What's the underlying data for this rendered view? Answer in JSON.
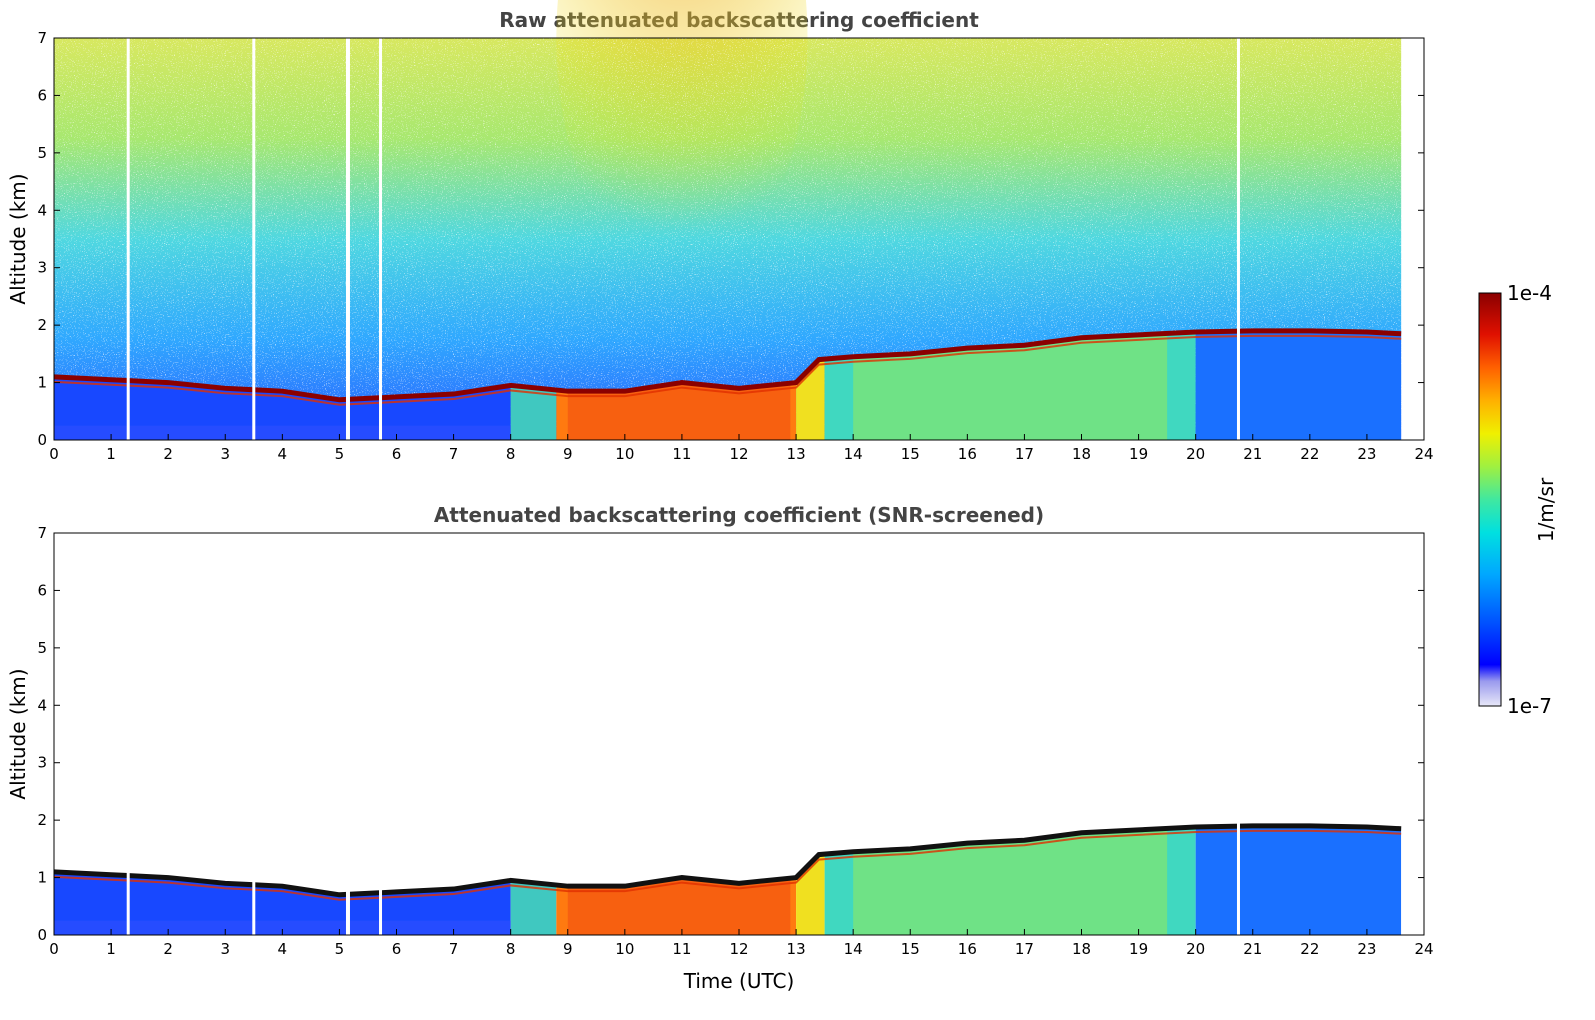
{
  "chart_data": [
    {
      "type": "heatmap",
      "title": "Raw attenuated backscattering coefficient",
      "xlabel": "",
      "ylabel": "Altitude (km)",
      "xlim": [
        0,
        24
      ],
      "ylim": [
        0,
        7
      ],
      "xticks": [
        "0",
        "1",
        "2",
        "3",
        "4",
        "5",
        "6",
        "7",
        "8",
        "9",
        "10",
        "11",
        "12",
        "13",
        "14",
        "15",
        "16",
        "17",
        "18",
        "19",
        "20",
        "21",
        "22",
        "23",
        "24"
      ],
      "yticks": [
        "0",
        "1",
        "2",
        "3",
        "4",
        "5",
        "6",
        "7"
      ],
      "data_end_time": 23.6,
      "gaps_utc": [
        1.3,
        3.5,
        5.15,
        5.72,
        20.75
      ],
      "cloud_top_km": [
        [
          0,
          1.1
        ],
        [
          1,
          1.05
        ],
        [
          2,
          1.0
        ],
        [
          3,
          0.9
        ],
        [
          4,
          0.85
        ],
        [
          5,
          0.7
        ],
        [
          6,
          0.75
        ],
        [
          7,
          0.8
        ],
        [
          8,
          0.95
        ],
        [
          9,
          0.85
        ],
        [
          10,
          0.85
        ],
        [
          11,
          1.0
        ],
        [
          12,
          0.9
        ],
        [
          13,
          1.0
        ],
        [
          13.4,
          1.4
        ],
        [
          14,
          1.45
        ],
        [
          15,
          1.5
        ],
        [
          16,
          1.6
        ],
        [
          17,
          1.65
        ],
        [
          18,
          1.78
        ],
        [
          19,
          1.83
        ],
        [
          20,
          1.88
        ],
        [
          21,
          1.9
        ],
        [
          22,
          1.9
        ],
        [
          23,
          1.88
        ],
        [
          23.6,
          1.85
        ]
      ],
      "noise_level": "high"
    },
    {
      "type": "heatmap",
      "title": "Attenuated backscattering coefficient (SNR-screened)",
      "xlabel": "Time (UTC)",
      "ylabel": "Altitude (km)",
      "xlim": [
        0,
        24
      ],
      "ylim": [
        0,
        7
      ],
      "xticks": [
        "0",
        "1",
        "2",
        "3",
        "4",
        "5",
        "6",
        "7",
        "8",
        "9",
        "10",
        "11",
        "12",
        "13",
        "14",
        "15",
        "16",
        "17",
        "18",
        "19",
        "20",
        "21",
        "22",
        "23",
        "24"
      ],
      "yticks": [
        "0",
        "1",
        "2",
        "3",
        "4",
        "5",
        "6",
        "7"
      ],
      "data_end_time": 23.6,
      "gaps_utc": [
        1.3,
        3.5,
        5.15,
        5.72,
        20.75
      ],
      "cloud_top_km": [
        [
          0,
          1.1
        ],
        [
          1,
          1.05
        ],
        [
          2,
          1.0
        ],
        [
          3,
          0.9
        ],
        [
          4,
          0.85
        ],
        [
          5,
          0.7
        ],
        [
          6,
          0.75
        ],
        [
          7,
          0.8
        ],
        [
          8,
          0.95
        ],
        [
          9,
          0.85
        ],
        [
          10,
          0.85
        ],
        [
          11,
          1.0
        ],
        [
          12,
          0.9
        ],
        [
          13,
          1.0
        ],
        [
          13.4,
          1.4
        ],
        [
          14,
          1.45
        ],
        [
          15,
          1.5
        ],
        [
          16,
          1.6
        ],
        [
          17,
          1.65
        ],
        [
          18,
          1.78
        ],
        [
          19,
          1.83
        ],
        [
          20,
          1.88
        ],
        [
          21,
          1.9
        ],
        [
          22,
          1.9
        ],
        [
          23,
          1.88
        ],
        [
          23.6,
          1.85
        ]
      ],
      "noise_level": "none"
    }
  ],
  "colorbar": {
    "max_label": "1e-4",
    "min_label": "1e-7",
    "unit_label": "1/m/sr",
    "colormap": "jet",
    "colors": [
      "#e8e8f8",
      "#9a9aee",
      "#0000ff",
      "#0050ff",
      "#00a8ff",
      "#00e0e0",
      "#40e8a0",
      "#a0f040",
      "#f0f000",
      "#ffb000",
      "#ff6000",
      "#e01000",
      "#8b0000"
    ]
  }
}
